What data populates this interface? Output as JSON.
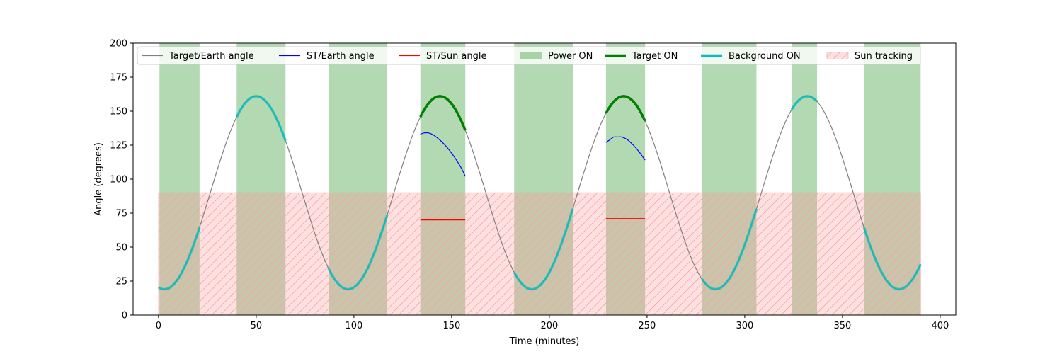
{
  "chart_data": {
    "type": "line",
    "title": "",
    "xlabel": "Time (minutes)",
    "ylabel": "Angle (degrees)",
    "xlim": [
      -13,
      408
    ],
    "ylim": [
      0,
      200
    ],
    "xticks": [
      0,
      50,
      100,
      150,
      200,
      250,
      300,
      350,
      400
    ],
    "yticks": [
      0,
      25,
      50,
      75,
      100,
      125,
      150,
      175,
      200
    ],
    "grid": false,
    "legend_placement": "top",
    "legend": [
      {
        "label": "Target/Earth angle",
        "kind": "line",
        "color": "#808080"
      },
      {
        "label": "ST/Earth angle",
        "kind": "line",
        "color": "#0000ff"
      },
      {
        "label": "ST/Sun angle",
        "kind": "line",
        "color": "#ff0000"
      },
      {
        "label": "Power ON",
        "kind": "patch",
        "color": "#008000"
      },
      {
        "label": "Target ON",
        "kind": "thickline",
        "color": "#008000"
      },
      {
        "label": "Background ON",
        "kind": "thickline",
        "color": "#00bfbf"
      },
      {
        "label": "Sun tracking",
        "kind": "hatch",
        "color": "#ff9999"
      }
    ],
    "target_earth_angle": {
      "period": 94,
      "min": 19,
      "max": 161,
      "min_time": 3,
      "x_range": [
        0,
        390
      ],
      "color": "#808080"
    },
    "power_on_intervals": [
      [
        0.5,
        21
      ],
      [
        40,
        65
      ],
      [
        87,
        117
      ],
      [
        134,
        157
      ],
      [
        182,
        212
      ],
      [
        229,
        249
      ],
      [
        278,
        306
      ],
      [
        324,
        337
      ],
      [
        361,
        390
      ]
    ],
    "target_on_intervals": [
      [
        134,
        157
      ],
      [
        229,
        249
      ]
    ],
    "background_on_intervals": [
      [
        0,
        21
      ],
      [
        40,
        65
      ],
      [
        87,
        117
      ],
      [
        182,
        212
      ],
      [
        278,
        306
      ],
      [
        324,
        337
      ],
      [
        361,
        390
      ]
    ],
    "sun_tracking": {
      "x_range": [
        0,
        390
      ],
      "y_range": [
        0,
        90
      ]
    },
    "st_earth_angle": [
      {
        "x": [
          134,
          136,
          138,
          140,
          143,
          146,
          149,
          152,
          155,
          157
        ],
        "y": [
          133,
          134,
          134,
          133,
          130,
          126,
          121,
          115,
          108,
          102
        ]
      },
      {
        "x": [
          229,
          231,
          233,
          235,
          237,
          240,
          243,
          246,
          249
        ],
        "y": [
          127,
          129,
          131,
          131,
          131,
          129,
          125,
          120,
          114
        ]
      }
    ],
    "st_sun_angle": [
      {
        "x": [
          134,
          157
        ],
        "y": [
          70,
          70
        ]
      },
      {
        "x": [
          229,
          249
        ],
        "y": [
          71,
          71
        ]
      }
    ]
  }
}
